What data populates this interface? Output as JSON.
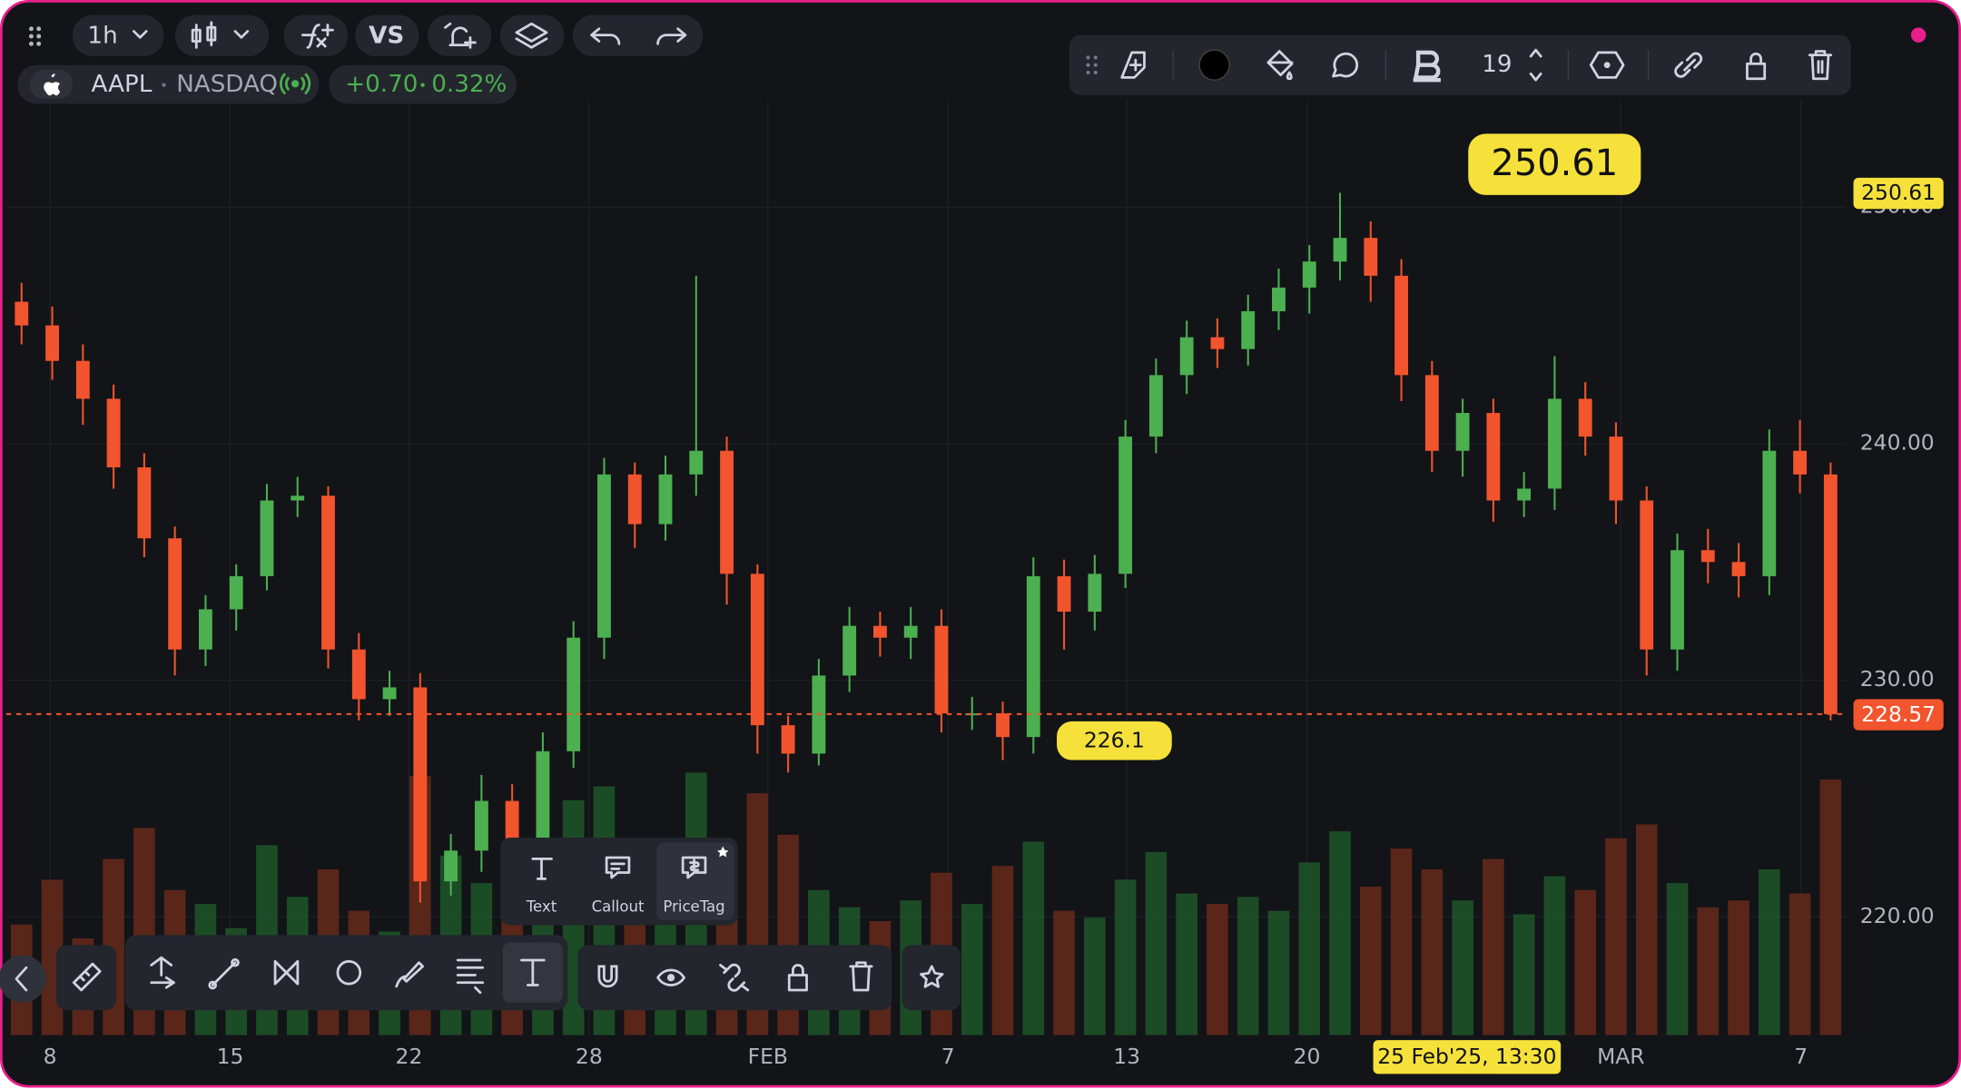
{
  "toolbar": {
    "interval": "1h",
    "compare": "VS",
    "font_size": "19"
  },
  "symbol": {
    "ticker": "AAPL",
    "exchange": "NASDAQ",
    "change": "+0.70",
    "change_pct": "0.32%"
  },
  "text_tools": [
    "Text",
    "Callout",
    "PriceTag"
  ],
  "chart_data": {
    "type": "candlestick",
    "colors": {
      "up": "#4caf50",
      "down": "#f2542d",
      "volume_up": "#1f5a2a",
      "volume_down": "#6b2a1a"
    },
    "grid": true,
    "x_labels": [
      "8",
      "15",
      "22",
      "28",
      "FEB",
      "7",
      "13",
      "20",
      "MAR",
      "7"
    ],
    "crosshair_label": "25 Feb'25, 13:30",
    "ylim": [
      215,
      254
    ],
    "yticks": [
      {
        "value": 220,
        "label": "220.00"
      },
      {
        "value": 230,
        "label": "230.00"
      },
      {
        "value": 240,
        "label": "240.00"
      },
      {
        "value": 250,
        "label": "250.00"
      }
    ],
    "open": [
      246.0,
      245.0,
      243.5,
      241.9,
      239.0,
      236.0,
      231.3,
      233.0,
      234.4,
      237.6,
      237.8,
      231.3,
      229.2,
      229.7,
      221.5,
      222.8,
      224.9,
      223.3,
      227.0,
      231.8,
      238.7,
      236.6,
      238.7,
      239.7,
      234.5,
      228.1,
      226.9,
      230.2,
      232.3,
      231.8,
      232.3,
      228.6,
      228.6,
      227.6,
      234.4,
      232.9,
      234.5,
      240.3,
      242.9,
      244.5,
      244.0,
      245.6,
      246.6,
      247.7,
      248.7,
      247.1,
      242.9,
      239.7,
      241.3,
      237.6,
      238.1,
      241.9,
      240.3,
      237.6,
      231.3,
      235.5,
      235.0,
      234.4,
      239.7,
      238.7
    ],
    "high": [
      246.8,
      245.8,
      244.2,
      242.5,
      239.6,
      236.5,
      233.6,
      234.9,
      238.3,
      238.6,
      238.2,
      232.0,
      230.4,
      230.3,
      223.5,
      226.0,
      225.6,
      227.8,
      232.5,
      239.4,
      239.2,
      239.5,
      247.1,
      240.3,
      234.9,
      228.5,
      230.9,
      233.1,
      232.9,
      233.1,
      233.0,
      229.3,
      229.1,
      235.2,
      235.1,
      235.3,
      241.0,
      243.6,
      245.2,
      245.3,
      246.3,
      247.4,
      248.4,
      250.61,
      249.4,
      247.8,
      243.5,
      241.9,
      241.9,
      238.8,
      243.7,
      242.6,
      240.9,
      238.2,
      236.2,
      236.4,
      235.8,
      240.6,
      241.0,
      239.2
    ],
    "low": [
      244.2,
      242.7,
      240.8,
      238.1,
      235.2,
      230.2,
      230.6,
      232.1,
      233.8,
      236.9,
      230.5,
      228.3,
      228.5,
      220.6,
      220.9,
      221.9,
      222.4,
      222.7,
      226.3,
      230.9,
      235.6,
      235.9,
      237.8,
      233.2,
      226.9,
      226.1,
      226.4,
      229.5,
      231.0,
      230.9,
      227.8,
      227.9,
      226.63,
      226.9,
      231.3,
      232.1,
      233.9,
      239.6,
      242.1,
      243.2,
      243.3,
      244.8,
      245.5,
      246.9,
      246.0,
      241.8,
      238.8,
      238.6,
      236.7,
      236.9,
      237.2,
      239.5,
      236.6,
      230.2,
      230.4,
      234.1,
      233.5,
      233.6,
      237.9,
      228.3
    ],
    "close": [
      245.0,
      243.5,
      241.9,
      239.0,
      236.0,
      231.3,
      233.0,
      234.4,
      237.6,
      237.8,
      231.3,
      229.2,
      229.7,
      221.5,
      222.8,
      224.9,
      223.3,
      227.0,
      231.8,
      238.7,
      236.6,
      238.7,
      239.7,
      234.5,
      228.1,
      226.9,
      230.2,
      232.3,
      231.8,
      232.3,
      228.6,
      228.6,
      227.6,
      234.4,
      232.9,
      234.5,
      240.3,
      242.9,
      244.5,
      244.0,
      245.6,
      246.6,
      247.7,
      248.7,
      247.1,
      242.9,
      239.7,
      241.3,
      237.6,
      238.1,
      241.9,
      240.3,
      237.6,
      231.3,
      235.5,
      235.0,
      234.4,
      239.7,
      238.7,
      228.57
    ],
    "volume": [
      3.2,
      4.5,
      2.8,
      5.1,
      6.0,
      4.2,
      3.8,
      3.1,
      5.5,
      4.0,
      4.8,
      3.6,
      3.0,
      7.5,
      5.2,
      4.4,
      3.9,
      4.1,
      6.8,
      7.2,
      4.6,
      3.5,
      7.6,
      5.0,
      7.0,
      5.8,
      4.2,
      3.7,
      3.3,
      3.9,
      4.7,
      3.8,
      4.9,
      5.6,
      3.6,
      3.4,
      4.5,
      5.3,
      4.1,
      3.8,
      4.0,
      3.6,
      5.0,
      5.9,
      4.3,
      5.4,
      4.8,
      3.9,
      5.1,
      3.5,
      4.6,
      4.2,
      5.7,
      6.1,
      4.4,
      3.7,
      3.9,
      4.8,
      4.1,
      7.4
    ]
  }
}
